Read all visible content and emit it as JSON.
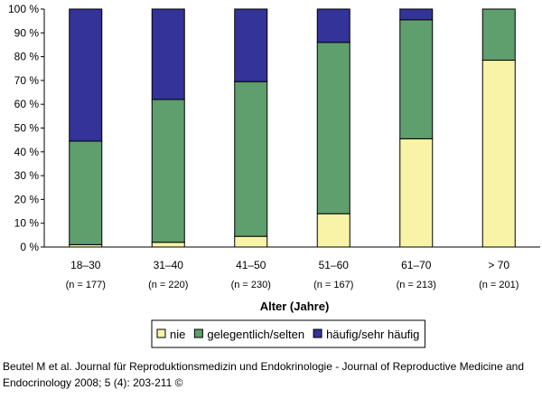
{
  "chart_data": {
    "type": "bar",
    "stacked": true,
    "percent": true,
    "categories": [
      "18–30",
      "31–40",
      "41–50",
      "51–60",
      "61–70",
      "> 70"
    ],
    "category_counts": [
      "(n = 177)",
      "(n = 220)",
      "(n = 230)",
      "(n = 167)",
      "(n = 213)",
      "(n = 201)"
    ],
    "series": [
      {
        "name": "nie",
        "color": "#f9f3a7",
        "values": [
          1,
          2,
          4.5,
          14,
          45.5,
          78.5
        ]
      },
      {
        "name": "gelegentlich/selten",
        "color": "#5f9e6d",
        "values": [
          43.5,
          60,
          65,
          72,
          50,
          21.5
        ]
      },
      {
        "name": "häufig/sehr häufig",
        "color": "#33339a",
        "values": [
          55.5,
          38,
          30.5,
          14,
          4.5,
          0
        ]
      }
    ],
    "ylim": [
      0,
      100
    ],
    "yticks": [
      "0 %",
      "10 %",
      "20 %",
      "30 %",
      "40 %",
      "50 %",
      "60 %",
      "70 %",
      "80 %",
      "90 %",
      "100 %"
    ],
    "xlabel": "Alter (Jahre)",
    "ylabel": "",
    "title": "",
    "grid": false,
    "legend_position": "bottom"
  },
  "caption": {
    "line1": "Beutel M et al. Journal für Reproduktionsmedizin und Endokrinologie - Journal of Reproductive Medicine and",
    "line2": "Endocrinology 2008; 5 (4): 203-211 ©"
  }
}
